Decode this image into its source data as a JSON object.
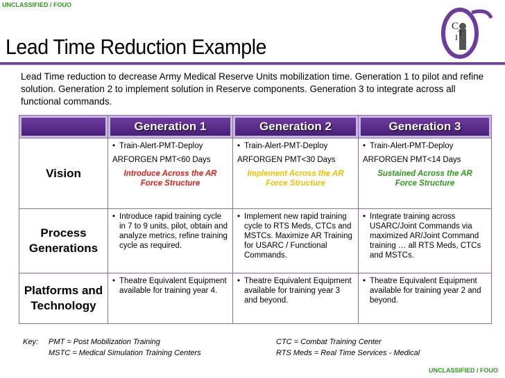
{
  "banner_top": "UNCLASSIFIED / FOUO",
  "banner_bottom": "UNCLASSIFIED / FOUO",
  "title": "Lead Time Reduction Example",
  "logo_text": [
    "C",
    "T",
    "I"
  ],
  "intro": "Lead Time reduction to decrease Army Medical Reserve Units mobilization time. Generation 1 to pilot and refine solution. Generation 2 to implement solution in Reserve components. Generation 3 to integrate across all functional commands.",
  "table": {
    "headers": [
      "Generation 1",
      "Generation 2",
      "Generation 3"
    ],
    "rows": [
      {
        "label": "Vision",
        "cells": [
          {
            "items": [
              "Train-Alert-PMT-Deploy"
            ],
            "line": "ARFORGEN PMT<60 Days",
            "emphasis": "Introduce Across the AR Force Structure",
            "emphasis_color": "#e0201c"
          },
          {
            "items": [
              "Train-Alert-PMT-Deploy"
            ],
            "line": "ARFORGEN PMT<30 Days",
            "emphasis": "Implement Across the AR Force Structure",
            "emphasis_color": "#e8c400"
          },
          {
            "items": [
              "Train-Alert-PMT-Deploy"
            ],
            "line": "ARFORGEN PMT<14 Days",
            "emphasis": "Sustained Across the AR Force Structure",
            "emphasis_color": "#2e9a1c"
          }
        ]
      },
      {
        "label": "Process Generations",
        "cells": [
          {
            "items": [
              "Introduce rapid training cycle in 7 to 9 units, pilot, obtain and analyze metrics, refine training cycle as required."
            ]
          },
          {
            "items": [
              "Implement new rapid training cycle to RTS Meds, CTCs and MSTCs. Maximize AR Training for USARC / Functional Commands."
            ]
          },
          {
            "items": [
              "Integrate training across USARC/Joint Commands via maximized AR/Joint Command training … all RTS Meds, CTCs and MSTCs."
            ]
          }
        ]
      },
      {
        "label": "Platforms and Technology",
        "cells": [
          {
            "items": [
              "Theatre Equivalent Equipment available for training year 4."
            ]
          },
          {
            "items": [
              "Theatre Equivalent Equipment available for training year 3 and beyond."
            ]
          },
          {
            "items": [
              "Theatre Equivalent Equipment available for training year 2 and beyond."
            ]
          }
        ]
      }
    ]
  },
  "key": {
    "label": "Key:",
    "left": [
      "PMT = Post Mobilization Training",
      "MSTC = Medical Simulation Training Centers"
    ],
    "right": [
      "CTC = Combat Training Center",
      "RTS Meds = Real Time Services - Medical"
    ]
  }
}
